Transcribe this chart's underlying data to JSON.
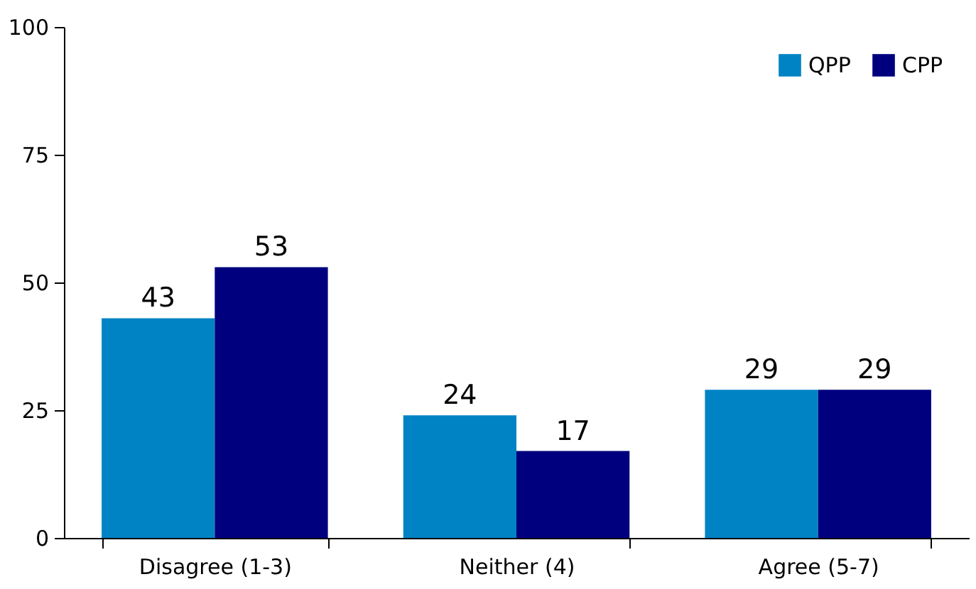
{
  "chart_data": {
    "type": "bar",
    "categories": [
      "Disagree (1-3)",
      "Neither (4)",
      "Agree (5-7)"
    ],
    "series": [
      {
        "name": "QPP",
        "color": "#0083c4",
        "values": [
          43,
          24,
          29
        ]
      },
      {
        "name": "CPP",
        "color": "#00007f",
        "values": [
          53,
          17,
          29
        ]
      }
    ],
    "ylim": [
      0,
      100
    ],
    "yticks": [
      0,
      25,
      50,
      75,
      100
    ],
    "data_labels": true,
    "legend": "top right"
  }
}
